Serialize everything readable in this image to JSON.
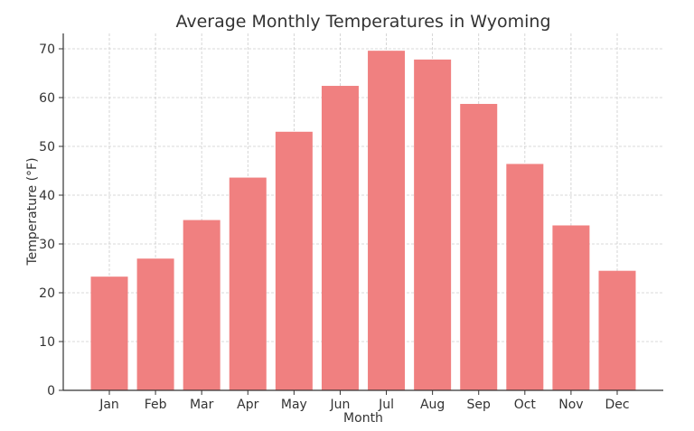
{
  "chart_data": {
    "type": "bar",
    "title": "Average Monthly Temperatures in Wyoming",
    "xlabel": "Month",
    "ylabel": "Temperature (°F)",
    "categories": [
      "Jan",
      "Feb",
      "Mar",
      "Apr",
      "May",
      "Jun",
      "Jul",
      "Aug",
      "Sep",
      "Oct",
      "Nov",
      "Dec"
    ],
    "values": [
      23.3,
      27.0,
      34.9,
      43.6,
      53.0,
      62.4,
      69.6,
      67.8,
      58.7,
      46.4,
      33.8,
      24.5
    ],
    "ylim": [
      0,
      73
    ],
    "yticks": [
      0,
      10,
      20,
      30,
      40,
      50,
      60,
      70
    ],
    "grid": true,
    "bar_color": "#f08080"
  }
}
